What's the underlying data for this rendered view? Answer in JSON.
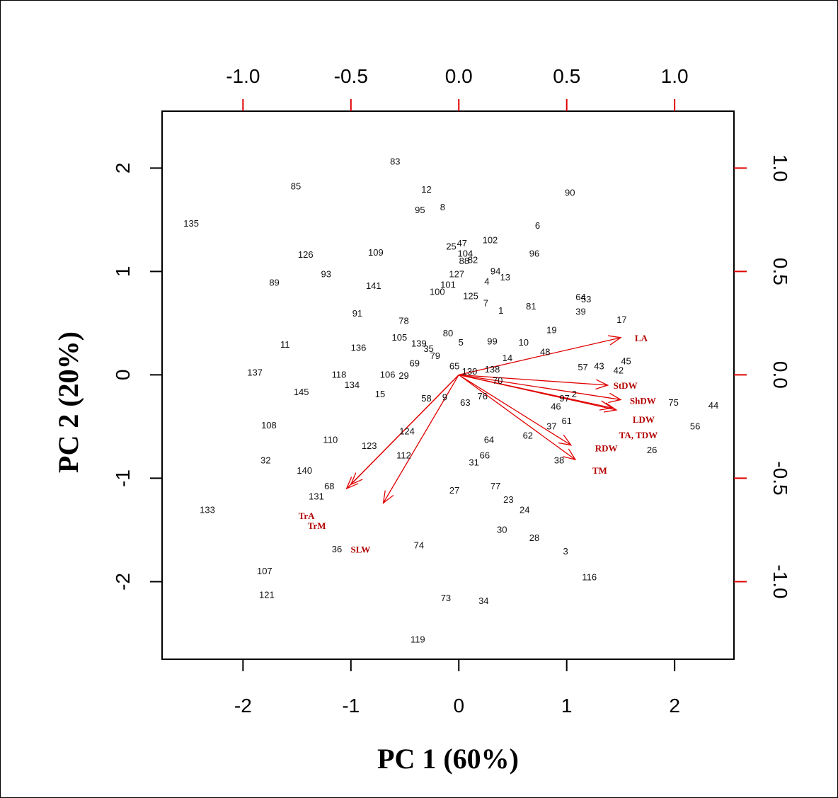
{
  "chart_data": {
    "type": "biplot",
    "xlabel": "PC 1 (60%)",
    "ylabel": "PC 2 (20%)",
    "xlim": [
      -2.75,
      2.55
    ],
    "ylim": [
      -2.75,
      2.55
    ],
    "x_ticks": [
      -2,
      -1,
      0,
      1,
      2
    ],
    "y_ticks": [
      -2,
      -1,
      0,
      1,
      2
    ],
    "secondary_xlim": [
      -1.375,
      1.275
    ],
    "secondary_ylim": [
      -1.375,
      1.275
    ],
    "secondary_x_ticks": [
      -1.0,
      -0.5,
      0.0,
      0.5,
      1.0
    ],
    "secondary_y_ticks": [
      -1.0,
      -0.5,
      0.0,
      0.5,
      1.0
    ],
    "secondary_tick_labels": [
      "-1.0",
      "-0.5",
      "0.0",
      "0.5",
      "1.0"
    ],
    "secondary_axis_color": "#e00000",
    "arrow_color": "#e00000",
    "label_color": "#b40000",
    "observations": [
      {
        "label": "83",
        "x": -0.59,
        "y": 2.06
      },
      {
        "label": "85",
        "x": -1.51,
        "y": 1.82
      },
      {
        "label": "12",
        "x": -0.3,
        "y": 1.79
      },
      {
        "label": "8",
        "x": -0.15,
        "y": 1.62
      },
      {
        "label": "95",
        "x": -0.36,
        "y": 1.59
      },
      {
        "label": "90",
        "x": 1.03,
        "y": 1.76
      },
      {
        "label": "135",
        "x": -2.48,
        "y": 1.46
      },
      {
        "label": "6",
        "x": 0.73,
        "y": 1.44
      },
      {
        "label": "102",
        "x": 0.29,
        "y": 1.3
      },
      {
        "label": "25",
        "x": -0.07,
        "y": 1.24
      },
      {
        "label": "47",
        "x": 0.03,
        "y": 1.27
      },
      {
        "label": "104",
        "x": 0.06,
        "y": 1.17
      },
      {
        "label": "126",
        "x": -1.42,
        "y": 1.16
      },
      {
        "label": "109",
        "x": -0.77,
        "y": 1.18
      },
      {
        "label": "96",
        "x": 0.7,
        "y": 1.17
      },
      {
        "label": "88",
        "x": 0.05,
        "y": 1.1
      },
      {
        "label": "82",
        "x": 0.13,
        "y": 1.11
      },
      {
        "label": "93",
        "x": -1.23,
        "y": 0.97
      },
      {
        "label": "94",
        "x": 0.34,
        "y": 1.0
      },
      {
        "label": "127",
        "x": -0.02,
        "y": 0.97
      },
      {
        "label": "13",
        "x": 0.43,
        "y": 0.94
      },
      {
        "label": "89",
        "x": -1.71,
        "y": 0.89
      },
      {
        "label": "4",
        "x": 0.26,
        "y": 0.9
      },
      {
        "label": "141",
        "x": -0.79,
        "y": 0.86
      },
      {
        "label": "101",
        "x": -0.1,
        "y": 0.87
      },
      {
        "label": "100",
        "x": -0.2,
        "y": 0.8
      },
      {
        "label": "125",
        "x": 0.11,
        "y": 0.76
      },
      {
        "label": "64",
        "x": 1.13,
        "y": 0.75
      },
      {
        "label": "53",
        "x": 1.18,
        "y": 0.73
      },
      {
        "label": "7",
        "x": 0.25,
        "y": 0.69
      },
      {
        "label": "81",
        "x": 0.67,
        "y": 0.66
      },
      {
        "label": "1",
        "x": 0.39,
        "y": 0.62
      },
      {
        "label": "39",
        "x": 1.13,
        "y": 0.61
      },
      {
        "label": "91",
        "x": -0.94,
        "y": 0.59
      },
      {
        "label": "17",
        "x": 1.51,
        "y": 0.53
      },
      {
        "label": "78",
        "x": -0.51,
        "y": 0.52
      },
      {
        "label": "19",
        "x": 0.86,
        "y": 0.43
      },
      {
        "label": "80",
        "x": -0.1,
        "y": 0.4
      },
      {
        "label": "105",
        "x": -0.55,
        "y": 0.36
      },
      {
        "label": "99",
        "x": 0.31,
        "y": 0.32
      },
      {
        "label": "10",
        "x": 0.6,
        "y": 0.31
      },
      {
        "label": "5",
        "x": 0.02,
        "y": 0.31
      },
      {
        "label": "139",
        "x": -0.37,
        "y": 0.3
      },
      {
        "label": "11",
        "x": -1.61,
        "y": 0.29
      },
      {
        "label": "136",
        "x": -0.93,
        "y": 0.26
      },
      {
        "label": "35",
        "x": -0.28,
        "y": 0.25
      },
      {
        "label": "48",
        "x": 0.8,
        "y": 0.22
      },
      {
        "label": "79",
        "x": -0.22,
        "y": 0.18
      },
      {
        "label": "14",
        "x": 0.45,
        "y": 0.16
      },
      {
        "label": "45",
        "x": 1.55,
        "y": 0.13
      },
      {
        "label": "69",
        "x": -0.41,
        "y": 0.11
      },
      {
        "label": "43",
        "x": 1.3,
        "y": 0.08
      },
      {
        "label": "57",
        "x": 1.15,
        "y": 0.07
      },
      {
        "label": "65",
        "x": -0.04,
        "y": 0.08
      },
      {
        "label": "42",
        "x": 1.48,
        "y": 0.04
      },
      {
        "label": "138",
        "x": 0.31,
        "y": 0.05
      },
      {
        "label": "130",
        "x": 0.1,
        "y": 0.03
      },
      {
        "label": "137",
        "x": -1.89,
        "y": 0.02
      },
      {
        "label": "118",
        "x": -1.11,
        "y": 0.0
      },
      {
        "label": "106",
        "x": -0.66,
        "y": 0.0
      },
      {
        "label": "29",
        "x": -0.51,
        "y": -0.01
      },
      {
        "label": "70",
        "x": 0.36,
        "y": -0.06
      },
      {
        "label": "134",
        "x": -0.99,
        "y": -0.1
      },
      {
        "label": "145",
        "x": -1.46,
        "y": -0.17
      },
      {
        "label": "15",
        "x": -0.73,
        "y": -0.19
      },
      {
        "label": "76",
        "x": 0.22,
        "y": -0.21
      },
      {
        "label": "2",
        "x": 1.07,
        "y": -0.19
      },
      {
        "label": "58",
        "x": -0.3,
        "y": -0.23
      },
      {
        "label": "9",
        "x": -0.13,
        "y": -0.22
      },
      {
        "label": "97",
        "x": 0.98,
        "y": -0.23
      },
      {
        "label": "63",
        "x": 0.06,
        "y": -0.27
      },
      {
        "label": "75",
        "x": 1.99,
        "y": -0.27
      },
      {
        "label": "44",
        "x": 2.36,
        "y": -0.3
      },
      {
        "label": "46",
        "x": 0.9,
        "y": -0.31
      },
      {
        "label": "56",
        "x": 2.19,
        "y": -0.5
      },
      {
        "label": "61",
        "x": 1.0,
        "y": -0.45
      },
      {
        "label": "37",
        "x": 0.86,
        "y": -0.5
      },
      {
        "label": "108",
        "x": -1.76,
        "y": -0.49
      },
      {
        "label": "124",
        "x": -0.48,
        "y": -0.55
      },
      {
        "label": "62",
        "x": 0.64,
        "y": -0.59
      },
      {
        "label": "110",
        "x": -1.19,
        "y": -0.63
      },
      {
        "label": "64",
        "x": 0.28,
        "y": -0.63
      },
      {
        "label": "123",
        "x": -0.83,
        "y": -0.69
      },
      {
        "label": "26",
        "x": 1.79,
        "y": -0.73
      },
      {
        "label": "112",
        "x": -0.51,
        "y": -0.78
      },
      {
        "label": "66",
        "x": 0.24,
        "y": -0.78
      },
      {
        "label": "38",
        "x": 0.93,
        "y": -0.83
      },
      {
        "label": "31",
        "x": 0.14,
        "y": -0.85
      },
      {
        "label": "32",
        "x": -1.79,
        "y": -0.83
      },
      {
        "label": "140",
        "x": -1.43,
        "y": -0.93
      },
      {
        "label": "68",
        "x": -1.2,
        "y": -1.08
      },
      {
        "label": "77",
        "x": 0.34,
        "y": -1.08
      },
      {
        "label": "27",
        "x": -0.04,
        "y": -1.12
      },
      {
        "label": "131",
        "x": -1.32,
        "y": -1.18
      },
      {
        "label": "23",
        "x": 0.46,
        "y": -1.21
      },
      {
        "label": "24",
        "x": 0.61,
        "y": -1.31
      },
      {
        "label": "133",
        "x": -2.33,
        "y": -1.31
      },
      {
        "label": "30",
        "x": 0.4,
        "y": -1.5
      },
      {
        "label": "28",
        "x": 0.7,
        "y": -1.58
      },
      {
        "label": "74",
        "x": -0.37,
        "y": -1.65
      },
      {
        "label": "36",
        "x": -1.13,
        "y": -1.69
      },
      {
        "label": "3",
        "x": 0.99,
        "y": -1.71
      },
      {
        "label": "107",
        "x": -1.8,
        "y": -1.9
      },
      {
        "label": "116",
        "x": 1.21,
        "y": -1.96
      },
      {
        "label": "121",
        "x": -1.78,
        "y": -2.13
      },
      {
        "label": "73",
        "x": -0.12,
        "y": -2.16
      },
      {
        "label": "34",
        "x": 0.23,
        "y": -2.19
      },
      {
        "label": "119",
        "x": -0.38,
        "y": -2.56
      }
    ],
    "variables": [
      {
        "label": "LA",
        "x": 0.75,
        "y": 0.18
      },
      {
        "label": "StDW",
        "x": 0.69,
        "y": -0.05
      },
      {
        "label": "ShDW",
        "x": 0.75,
        "y": -0.12
      },
      {
        "label": "LDW",
        "x": 0.73,
        "y": -0.17
      },
      {
        "label": "TA, TDW",
        "x": 0.71,
        "y": -0.16
      },
      {
        "label": "RDW",
        "x": 0.52,
        "y": -0.34
      },
      {
        "label": "TM",
        "x": 0.54,
        "y": -0.41
      },
      {
        "label": "TrA",
        "x": -0.52,
        "y": -0.55
      },
      {
        "label": "TrM",
        "x": -0.5,
        "y": -0.53
      },
      {
        "label": "SLW",
        "x": -0.35,
        "y": -0.62
      }
    ]
  }
}
